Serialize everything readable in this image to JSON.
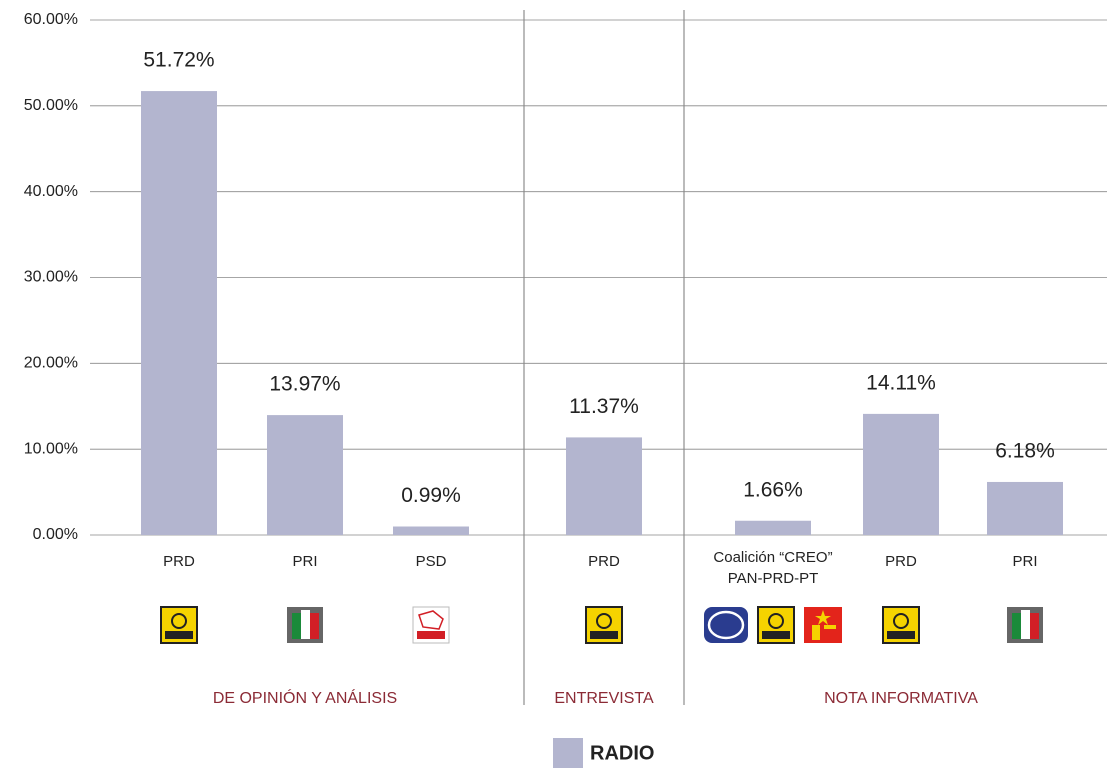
{
  "chart_data": {
    "type": "bar",
    "series_name": "RADIO",
    "color": "#b3b5cf",
    "groups": [
      {
        "label": "DE OPINIÓN Y ANÁLISIS",
        "categories": [
          "PRD",
          "PRI",
          "PSD"
        ],
        "values": [
          51.72,
          13.97,
          0.99
        ],
        "value_labels": [
          "51.72%",
          "13.97%",
          "0.99%"
        ]
      },
      {
        "label": "ENTREVISTA",
        "categories": [
          "PRD"
        ],
        "values": [
          11.37
        ],
        "value_labels": [
          "11.37%"
        ]
      },
      {
        "label": "NOTA INFORMATIVA",
        "categories": [
          [
            "Coalición “CREO”",
            "PAN-PRD-PT"
          ],
          "PRD",
          "PRI"
        ],
        "values": [
          1.66,
          14.11,
          6.18
        ],
        "value_labels": [
          "1.66%",
          "14.11%",
          "6.18%"
        ]
      }
    ],
    "ylim": [
      0,
      60
    ],
    "yticks": [
      {
        "value": 0,
        "label": "0.00%"
      },
      {
        "value": 10,
        "label": "10.00%"
      },
      {
        "value": 20,
        "label": "20.00%"
      },
      {
        "value": 30,
        "label": "30.00%"
      },
      {
        "value": 40,
        "label": "40.00%"
      },
      {
        "value": 50,
        "label": "50.00%"
      },
      {
        "value": 60,
        "label": "60.00%"
      }
    ],
    "grid": true
  }
}
